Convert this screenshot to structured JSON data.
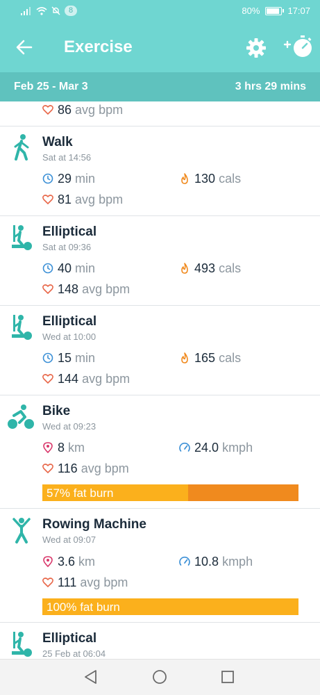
{
  "status_bar": {
    "notification_count": "8",
    "battery": "80%",
    "time": "17:07"
  },
  "header": {
    "title": "Exercise"
  },
  "date_bar": {
    "range": "Feb 25 - Mar 3",
    "total": "3 hrs 29 mins"
  },
  "partial_top": {
    "bpm": "86",
    "bpm_unit": "avg bpm"
  },
  "activities": [
    {
      "name": "Walk",
      "time": "Sat at 14:56",
      "duration": "29",
      "duration_unit": "min",
      "cals": "130",
      "cals_unit": "cals",
      "bpm": "81",
      "bpm_unit": "avg bpm",
      "icon": "walk-icon"
    },
    {
      "name": "Elliptical",
      "time": "Sat at 09:36",
      "duration": "40",
      "duration_unit": "min",
      "cals": "493",
      "cals_unit": "cals",
      "bpm": "148",
      "bpm_unit": "avg bpm",
      "icon": "elliptical-icon"
    },
    {
      "name": "Elliptical",
      "time": "Wed at 10:00",
      "duration": "15",
      "duration_unit": "min",
      "cals": "165",
      "cals_unit": "cals",
      "bpm": "144",
      "bpm_unit": "avg bpm",
      "icon": "elliptical-icon"
    },
    {
      "name": "Bike",
      "time": "Wed at 09:23",
      "distance": "8",
      "distance_unit": "km",
      "speed": "24.0",
      "speed_unit": "kmph",
      "bpm": "116",
      "bpm_unit": "avg bpm",
      "fat_burn_label": "57% fat burn",
      "fat_burn_fraction": 0.57,
      "icon": "bike-icon"
    },
    {
      "name": "Rowing Machine",
      "time": "Wed at 09:07",
      "distance": "3.6",
      "distance_unit": "km",
      "speed": "10.8",
      "speed_unit": "kmph",
      "bpm": "111",
      "bpm_unit": "avg bpm",
      "fat_burn_label": "100% fat burn",
      "fat_burn_fraction": 1.0,
      "icon": "rowing-icon"
    },
    {
      "name": "Elliptical",
      "time": "25 Feb at 06:04",
      "icon": "elliptical-icon"
    }
  ],
  "colors": {
    "header": "#6fd6d1",
    "date_bar": "#5fc2be",
    "fat_burn": "#fbb01c",
    "peak": "#f08a1e",
    "heart": "#e8684a",
    "clock": "#3a8fd6",
    "flame": "#f08a1e",
    "pin": "#d9386b"
  }
}
